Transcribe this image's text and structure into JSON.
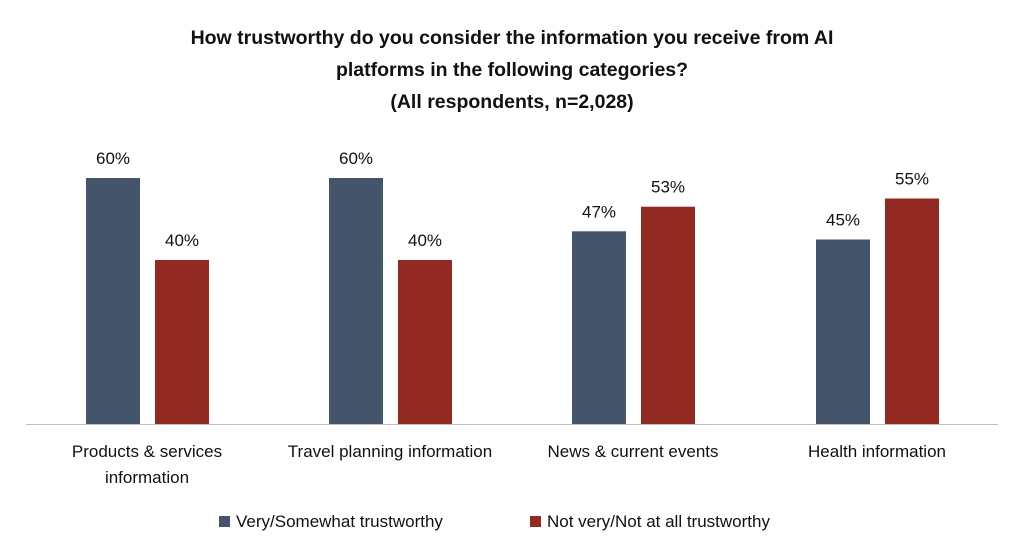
{
  "chart_data": {
    "type": "bar",
    "title": [
      "How trustworthy do you consider the information you receive from AI",
      "platforms in the following categories?",
      "(All respondents, n=2,028)"
    ],
    "categories": [
      [
        "Products & services",
        "information"
      ],
      [
        "Travel planning information"
      ],
      [
        "News & current events"
      ],
      [
        "Health information"
      ]
    ],
    "series": [
      {
        "name": "Very/Somewhat trustworthy",
        "color": "#44546a",
        "values": [
          60,
          60,
          47,
          45
        ],
        "labels": [
          "60%",
          "60%",
          "47%",
          "45%"
        ]
      },
      {
        "name": "Not very/Not at all trustworthy",
        "color": "#922a22",
        "values": [
          40,
          40,
          53,
          55
        ],
        "labels": [
          "40%",
          "40%",
          "53%",
          "55%"
        ]
      }
    ],
    "ylim": [
      0,
      100
    ],
    "grid": false,
    "legend_position": "bottom",
    "data_labels": true
  }
}
